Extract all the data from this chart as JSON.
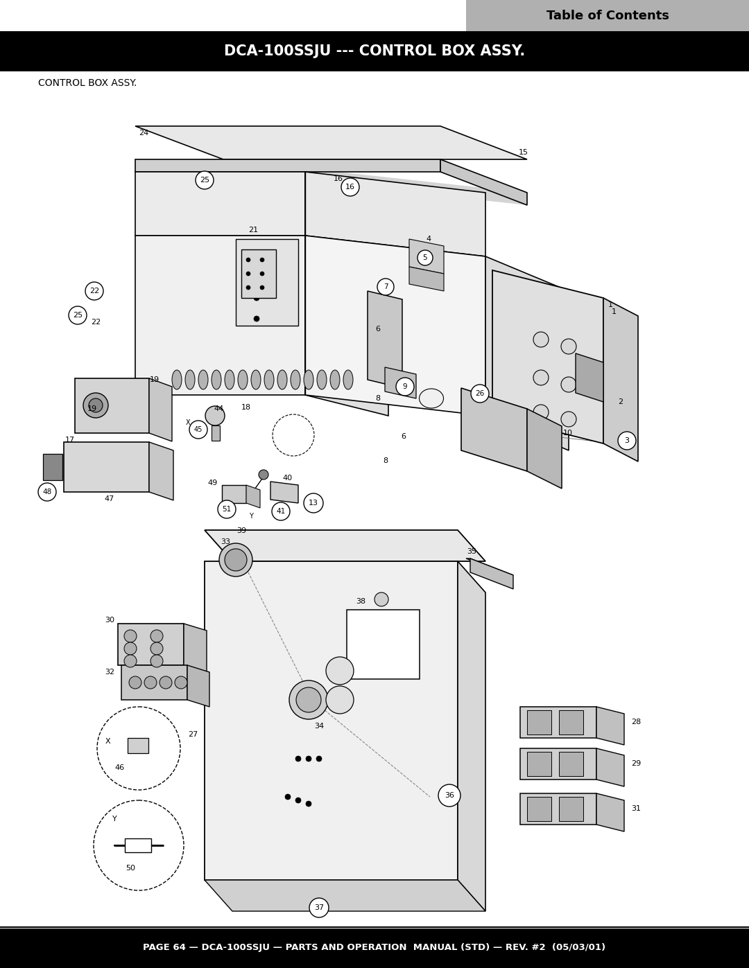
{
  "page_bg": "#ffffff",
  "header_bg": "#000000",
  "toc_bg": "#b8b8b8",
  "footer_bg": "#000000",
  "header_text": "DCA-100SSJU --- CONTROL BOX ASSY.",
  "header_text_color": "#ffffff",
  "toc_text": "Table of Contents",
  "toc_text_color": "#000000",
  "footer_text": "PAGE 64 — DCA-100SSJU — PARTS AND OPERATION  MANUAL (STD) — REV. #2  (05/03/01)",
  "footer_text_color": "#ffffff",
  "section_label": "CONTROL BOX ASSY.",
  "section_label_color": "#000000",
  "fig_width": 10.8,
  "fig_height": 13.97,
  "dpi": 100
}
